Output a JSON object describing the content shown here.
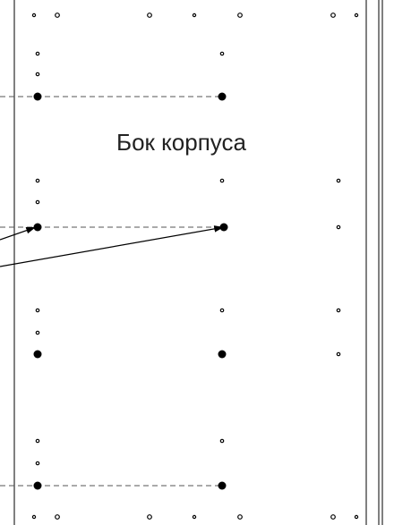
{
  "panel": {
    "label": "Бок корпуса"
  },
  "colors": {
    "line": "#000000",
    "dashed": "#555555",
    "background": "#ffffff"
  }
}
